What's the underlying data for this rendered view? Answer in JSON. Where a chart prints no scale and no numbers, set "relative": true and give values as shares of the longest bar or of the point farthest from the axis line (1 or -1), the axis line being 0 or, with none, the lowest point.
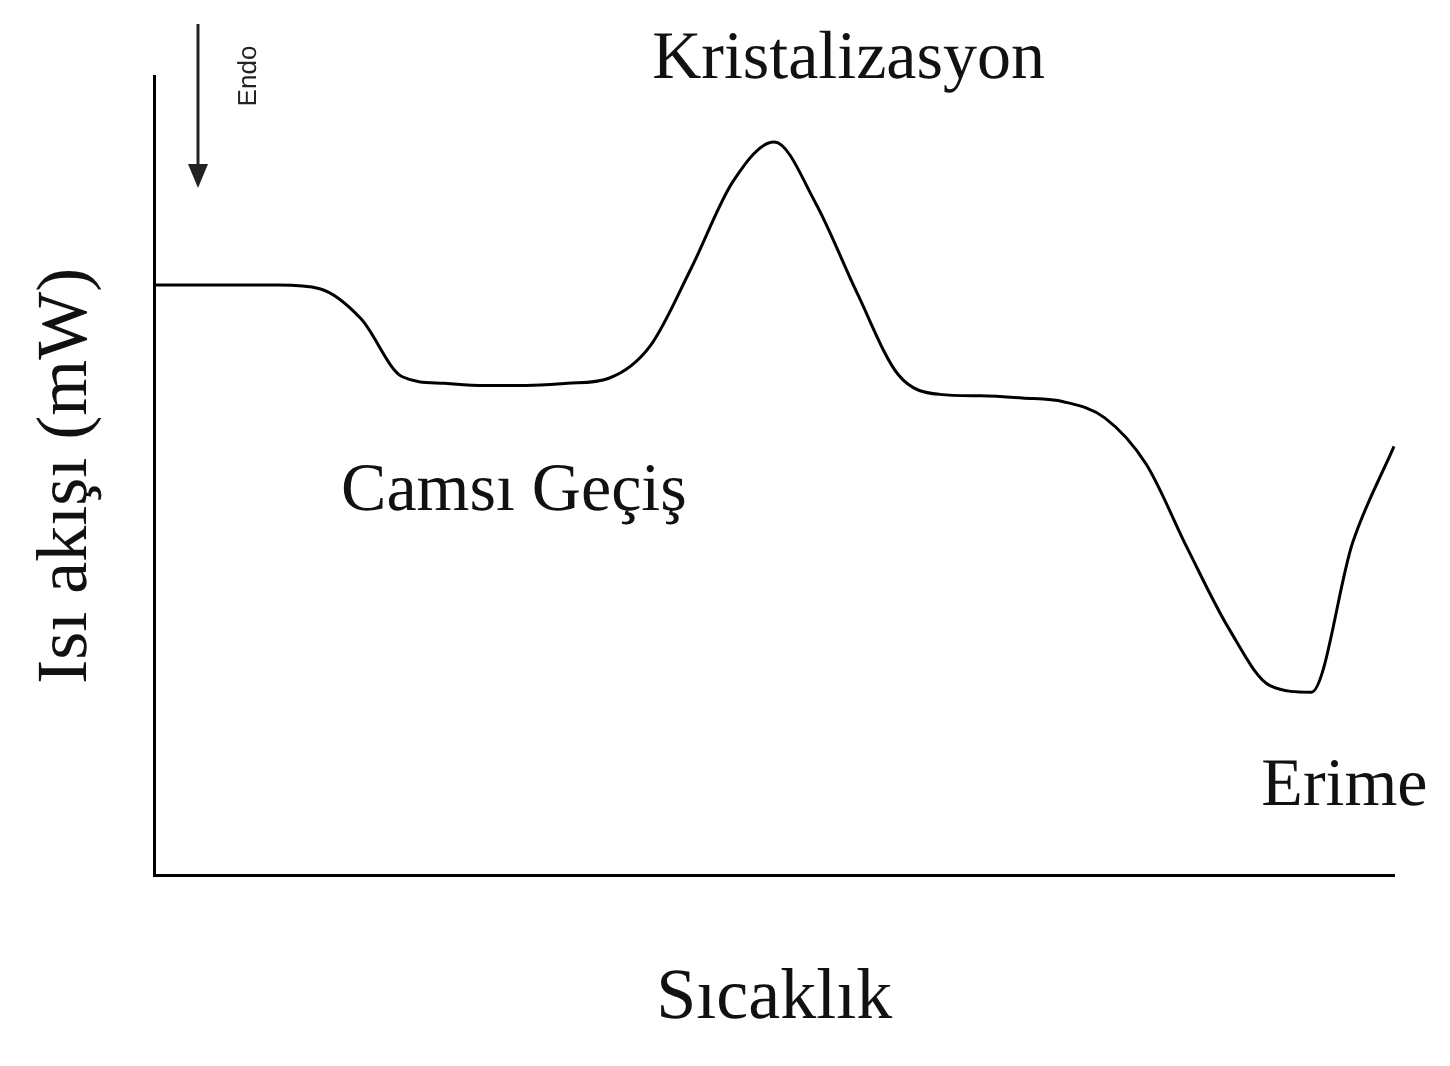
{
  "chart_data": {
    "type": "line",
    "relative": true,
    "xlabel": "Sıcaklık",
    "ylabel": "Isı akışı (mW)",
    "color": "#000000",
    "marker": "none",
    "legend": false,
    "grid": false,
    "categories": [
      null,
      null,
      null,
      null,
      null,
      null,
      null,
      null,
      null,
      null,
      null,
      null,
      null,
      null,
      null,
      null,
      null,
      null,
      null,
      null,
      null,
      null,
      null,
      null,
      null,
      null,
      null,
      null,
      null,
      null,
      null
    ],
    "values": [
      0.805,
      0.805,
      0.805,
      0.805,
      0.8,
      0.759,
      0.68,
      0.671,
      0.668,
      0.668,
      0.671,
      0.678,
      0.722,
      0.829,
      0.946,
      1,
      0.917,
      0.795,
      0.683,
      0.656,
      0.654,
      0.651,
      0.646,
      0.624,
      0.561,
      0.446,
      0.337,
      0.259,
      0.25,
      0.454,
      0.585
    ],
    "annotations": [
      "Kristalizasyon",
      "Camsı Geçiş",
      "Erime",
      "Endo"
    ]
  }
}
